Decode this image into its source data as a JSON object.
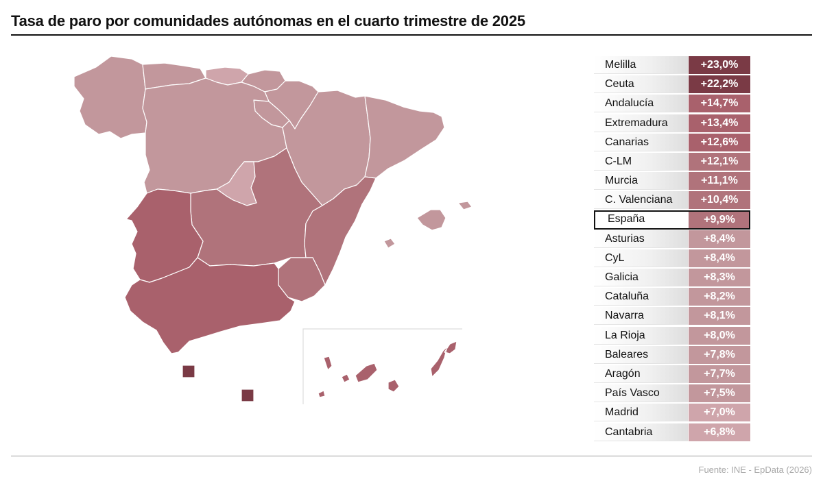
{
  "title": "Tasa de paro por comunidades autónomas en el cuarto trimestre de 2025",
  "source": "Fuente: INE - EpData (2026)",
  "colors": {
    "tier1": "#7a3a45",
    "tier2": "#a9616c",
    "tier3": "#b0737b",
    "tier4": "#c2979c",
    "tier5": "#cfa5ab",
    "highlight_border": "#111111"
  },
  "ranking": [
    {
      "name": "Melilla",
      "value": "+23,0%",
      "tier": "tier1"
    },
    {
      "name": "Ceuta",
      "value": "+22,2%",
      "tier": "tier1"
    },
    {
      "name": "Andalucía",
      "value": "+14,7%",
      "tier": "tier2"
    },
    {
      "name": "Extremadura",
      "value": "+13,4%",
      "tier": "tier2"
    },
    {
      "name": "Canarias",
      "value": "+12,6%",
      "tier": "tier2"
    },
    {
      "name": "C-LM",
      "value": "+12,1%",
      "tier": "tier3"
    },
    {
      "name": "Murcia",
      "value": "+11,1%",
      "tier": "tier3"
    },
    {
      "name": "C. Valenciana",
      "value": "+10,4%",
      "tier": "tier3"
    },
    {
      "name": "España",
      "value": "+9,9%",
      "tier": "tier3",
      "highlight": true
    },
    {
      "name": "Asturias",
      "value": "+8,4%",
      "tier": "tier4"
    },
    {
      "name": "CyL",
      "value": "+8,4%",
      "tier": "tier4"
    },
    {
      "name": "Galicia",
      "value": "+8,3%",
      "tier": "tier4"
    },
    {
      "name": "Cataluña",
      "value": "+8,2%",
      "tier": "tier4"
    },
    {
      "name": "Navarra",
      "value": "+8,1%",
      "tier": "tier4"
    },
    {
      "name": "La Rioja",
      "value": "+8,0%",
      "tier": "tier4"
    },
    {
      "name": "Baleares",
      "value": "+7,8%",
      "tier": "tier4"
    },
    {
      "name": "Aragón",
      "value": "+7,7%",
      "tier": "tier4"
    },
    {
      "name": "País Vasco",
      "value": "+7,5%",
      "tier": "tier4"
    },
    {
      "name": "Madrid",
      "value": "+7,0%",
      "tier": "tier5"
    },
    {
      "name": "Cantabria",
      "value": "+6,8%",
      "tier": "tier5"
    }
  ]
}
